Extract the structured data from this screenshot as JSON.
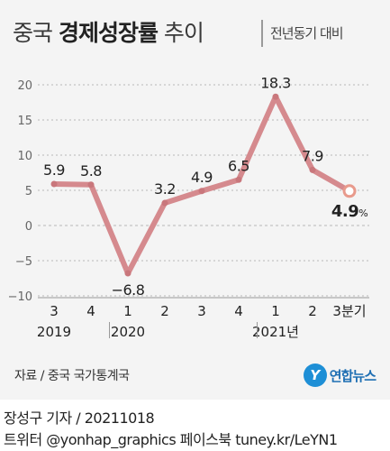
{
  "header": {
    "title_normal_1": "중국 ",
    "title_bold": "경제성장률",
    "title_normal_2": " 추이",
    "subtitle": "전년동기 대비"
  },
  "footer": {
    "source": "자료 / 중국 국가통계국",
    "logo_mark": "Y",
    "logo_text": "연합뉴스",
    "credit_line_1": "장성구 기자 / 20211018",
    "credit_line_2": "트위터 @yonhap_graphics  페이스북 tuney.kr/LeYN1"
  },
  "colors": {
    "line": "#d58a8e",
    "point": "#c9777c",
    "highlight_fill": "#ffffff",
    "grid": "#b8b8b8",
    "text": "#222222",
    "background": "#f4f4f4"
  },
  "chart_data": {
    "type": "line",
    "ylim": [
      -10,
      20
    ],
    "y_ticks": [
      20,
      15,
      10,
      5,
      0,
      -5,
      -10
    ],
    "y_tick_labels": [
      "20",
      "15",
      "10",
      "5",
      "0",
      "−5",
      "−10"
    ],
    "grid": true,
    "x_labels": [
      "3",
      "4",
      "1",
      "2",
      "3",
      "4",
      "1",
      "2",
      "3분기"
    ],
    "year_labels": [
      {
        "text": "2019",
        "index": 0
      },
      {
        "text": "2020",
        "index": 2
      },
      {
        "text": "2021년",
        "index": 6
      }
    ],
    "series": [
      {
        "values": [
          5.9,
          5.8,
          -6.8,
          3.2,
          4.9,
          6.5,
          18.3,
          7.9,
          4.9
        ],
        "value_labels": [
          "5.9",
          "5.8",
          "−6.8",
          "3.2",
          "4.9",
          "6.5",
          "18.3",
          "7.9",
          "4.9"
        ]
      }
    ],
    "highlight_index": 8,
    "highlight_unit": "%"
  }
}
